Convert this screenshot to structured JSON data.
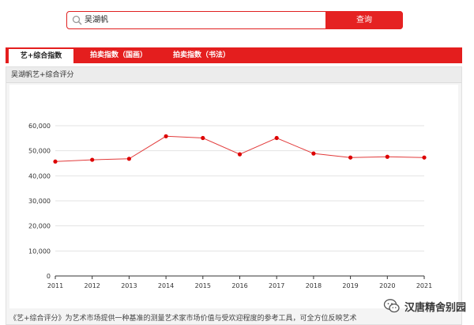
{
  "search": {
    "value": "吴湖帆",
    "button_label": "查询"
  },
  "tabs": [
    {
      "label": "艺+综合指数",
      "active": true
    },
    {
      "label": "拍卖指数（国画）",
      "active": false
    },
    {
      "label": "拍卖指数（书法）",
      "active": false
    }
  ],
  "panel": {
    "title": "吴湖帆艺+综合评分"
  },
  "chart_data": {
    "type": "line",
    "title": "",
    "xlabel": "",
    "ylabel": "",
    "x": [
      "2011",
      "2012",
      "2013",
      "2014",
      "2015",
      "2016",
      "2017",
      "2018",
      "2019",
      "2020",
      "2021"
    ],
    "series": [
      {
        "values": [
          45700,
          46400,
          46800,
          55800,
          55100,
          48600,
          55100,
          48900,
          47300,
          47600,
          47300
        ]
      }
    ],
    "ylim": [
      0,
      60000
    ],
    "yticks": [
      "0",
      "10,000",
      "20,000",
      "30,000",
      "40,000",
      "50,000",
      "60,000"
    ],
    "grid": true,
    "line_color": "#e23b3b",
    "marker_color": "#dd0000"
  },
  "description": "《艺+综合评分》为艺术市场提供一种基准的测量艺术家市场价值与受欢迎程度的参考工具，可全方位反映艺术家在拍卖领域和艺术市场中的综合表现",
  "watermark": {
    "text": "汉唐精舍别园"
  },
  "colors": {
    "accent": "#e41e1e"
  }
}
